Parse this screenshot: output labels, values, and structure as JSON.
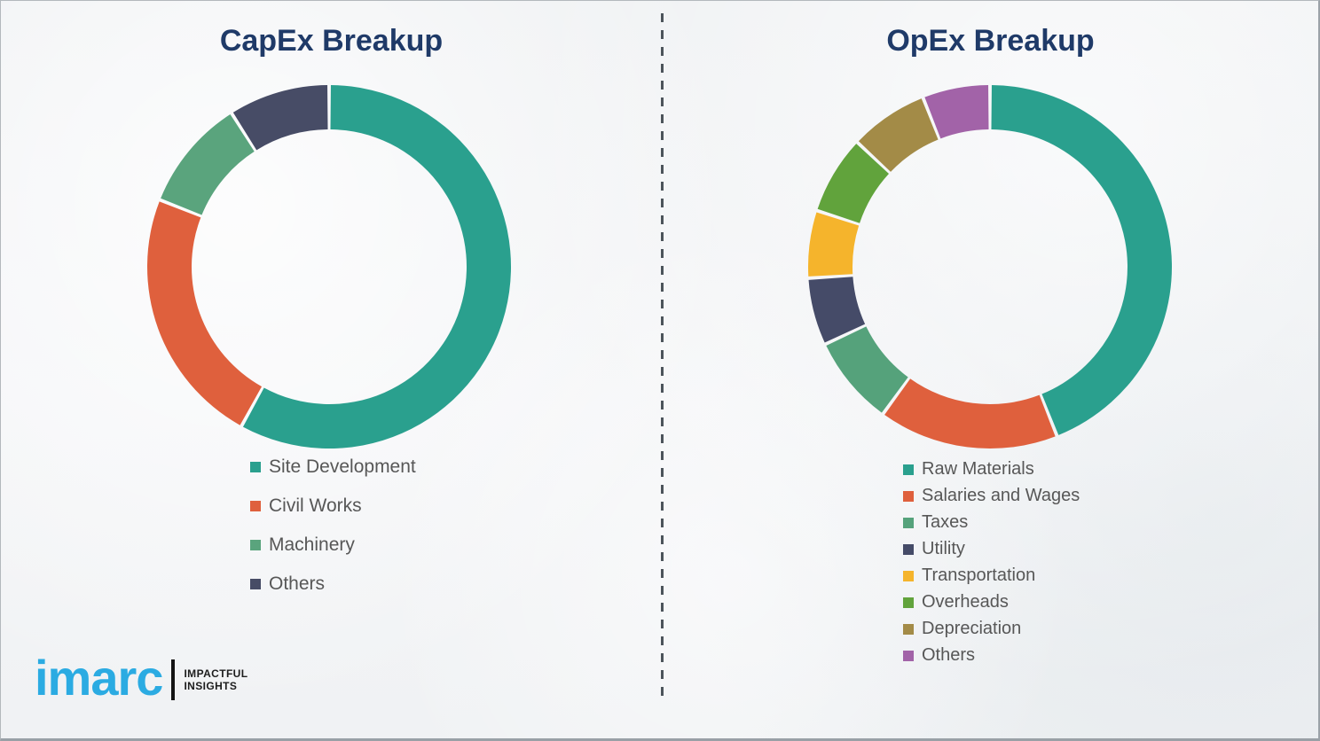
{
  "chart_data": [
    {
      "type": "pie",
      "variant": "donut",
      "title": "CapEx Breakup",
      "legend_position": "below",
      "categories": [
        "Site Development",
        "Civil Works",
        "Machinery",
        "Others"
      ],
      "values": [
        58,
        23,
        10,
        9
      ],
      "unit": "percent (estimated from arc angles)",
      "colors": [
        "#2aa08e",
        "#df603d",
        "#5aa47d",
        "#474c66"
      ],
      "start_angle_deg": 0,
      "direction": "clockwise"
    },
    {
      "type": "pie",
      "variant": "donut",
      "title": "OpEx Breakup",
      "legend_position": "below",
      "categories": [
        "Raw Materials",
        "Salaries and Wages",
        "Taxes",
        "Utility",
        "Transportation",
        "Overheads",
        "Depreciation",
        "Others"
      ],
      "values": [
        44,
        16,
        8,
        6,
        6,
        7,
        7,
        6
      ],
      "unit": "percent (estimated from arc angles)",
      "colors": [
        "#2aa08e",
        "#df603d",
        "#55a27b",
        "#454b68",
        "#f5b42c",
        "#61a33c",
        "#a38b47",
        "#a263a8"
      ],
      "start_angle_deg": 0,
      "direction": "clockwise"
    }
  ],
  "branding": {
    "logo_text": "imarc",
    "tagline_line1": "IMPACTFUL",
    "tagline_line2": "INSIGHTS",
    "logo_color": "#2babe2"
  },
  "styles": {
    "title_color": "#1f3a68",
    "legend_text_color": "#575757",
    "divider_color": "#4c545b"
  }
}
